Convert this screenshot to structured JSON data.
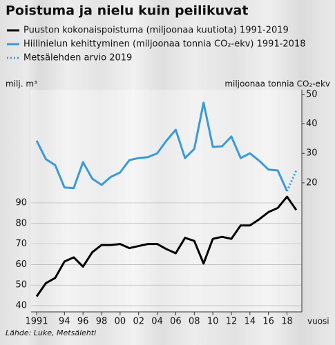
{
  "chart_data": {
    "type": "line",
    "title": "Poistuma ja nielu kuin peilikuvat",
    "y_label": "milj. m³",
    "y2_label": "miljoonaa tonnia CO₂-ekv",
    "x_label": "vuosi",
    "source": "Lähde: Luke, Metsälehti",
    "x": [
      1991,
      1992,
      1993,
      1994,
      1995,
      1996,
      1997,
      1998,
      1999,
      2000,
      2001,
      2002,
      2003,
      2004,
      2005,
      2006,
      2007,
      2008,
      2009,
      2010,
      2011,
      2012,
      2013,
      2014,
      2015,
      2016,
      2017,
      2018,
      2019
    ],
    "series": [
      {
        "name": "Puuston kokonaispoistuma (miljoonaa kuutiota) 1991-2019",
        "color": "#000000",
        "axis": "y",
        "style": "solid",
        "values": [
          44.5,
          51,
          53.5,
          61.5,
          63.5,
          59,
          66,
          69.5,
          69.5,
          70,
          68,
          69,
          70,
          70,
          67.5,
          65.5,
          73,
          71.5,
          60.5,
          72.5,
          73.5,
          72.5,
          79,
          79,
          82,
          85.5,
          87.5,
          93,
          86.5
        ]
      },
      {
        "name": "Hiilinielun kehittyminen (miljoonaa tonnia CO₂-ekv) 1991-2018",
        "color": "#3a9ad9",
        "axis": "y2",
        "style": "solid",
        "values": [
          34.3,
          28,
          26,
          18.4,
          18.2,
          27,
          21.4,
          19.3,
          22,
          23.5,
          27.7,
          28.4,
          28.7,
          30,
          34.3,
          38,
          28.4,
          31.5,
          47.2,
          32.2,
          32.4,
          35.7,
          28.4,
          30,
          27.5,
          24.5,
          24.2,
          17.2,
          null
        ]
      },
      {
        "name": "Metsälehden arvio 2019",
        "color": "#3a9ad9",
        "axis": "y2",
        "style": "dotted",
        "values": [
          null,
          null,
          null,
          null,
          null,
          null,
          null,
          null,
          null,
          null,
          null,
          null,
          null,
          null,
          null,
          null,
          null,
          null,
          null,
          null,
          null,
          null,
          null,
          null,
          null,
          null,
          null,
          17.2,
          24.2
        ]
      }
    ],
    "xlim": [
      1990.4,
      2019.6
    ],
    "xticks": [
      1991,
      {
        "value": 1994,
        "label": "94"
      },
      {
        "value": 1996,
        "label": "96"
      },
      {
        "value": 1998,
        "label": "98"
      },
      {
        "value": 2000,
        "label": "00"
      },
      {
        "value": 2002,
        "label": "02"
      },
      {
        "value": 2004,
        "label": "04"
      },
      {
        "value": 2006,
        "label": "06"
      },
      {
        "value": 2008,
        "label": "08"
      },
      {
        "value": 2010,
        "label": "10"
      },
      {
        "value": 2012,
        "label": "12"
      },
      {
        "value": 2014,
        "label": "14"
      },
      {
        "value": 2016,
        "label": "16"
      },
      {
        "value": 2018,
        "label": "18"
      }
    ],
    "ylim": [
      37,
      145
    ],
    "yticks": [
      40,
      50,
      60,
      70,
      80,
      90
    ],
    "y2lim": [
      -23.8,
      51.6
    ],
    "y2ticks": [
      20,
      30,
      40,
      50
    ],
    "grid": true
  }
}
